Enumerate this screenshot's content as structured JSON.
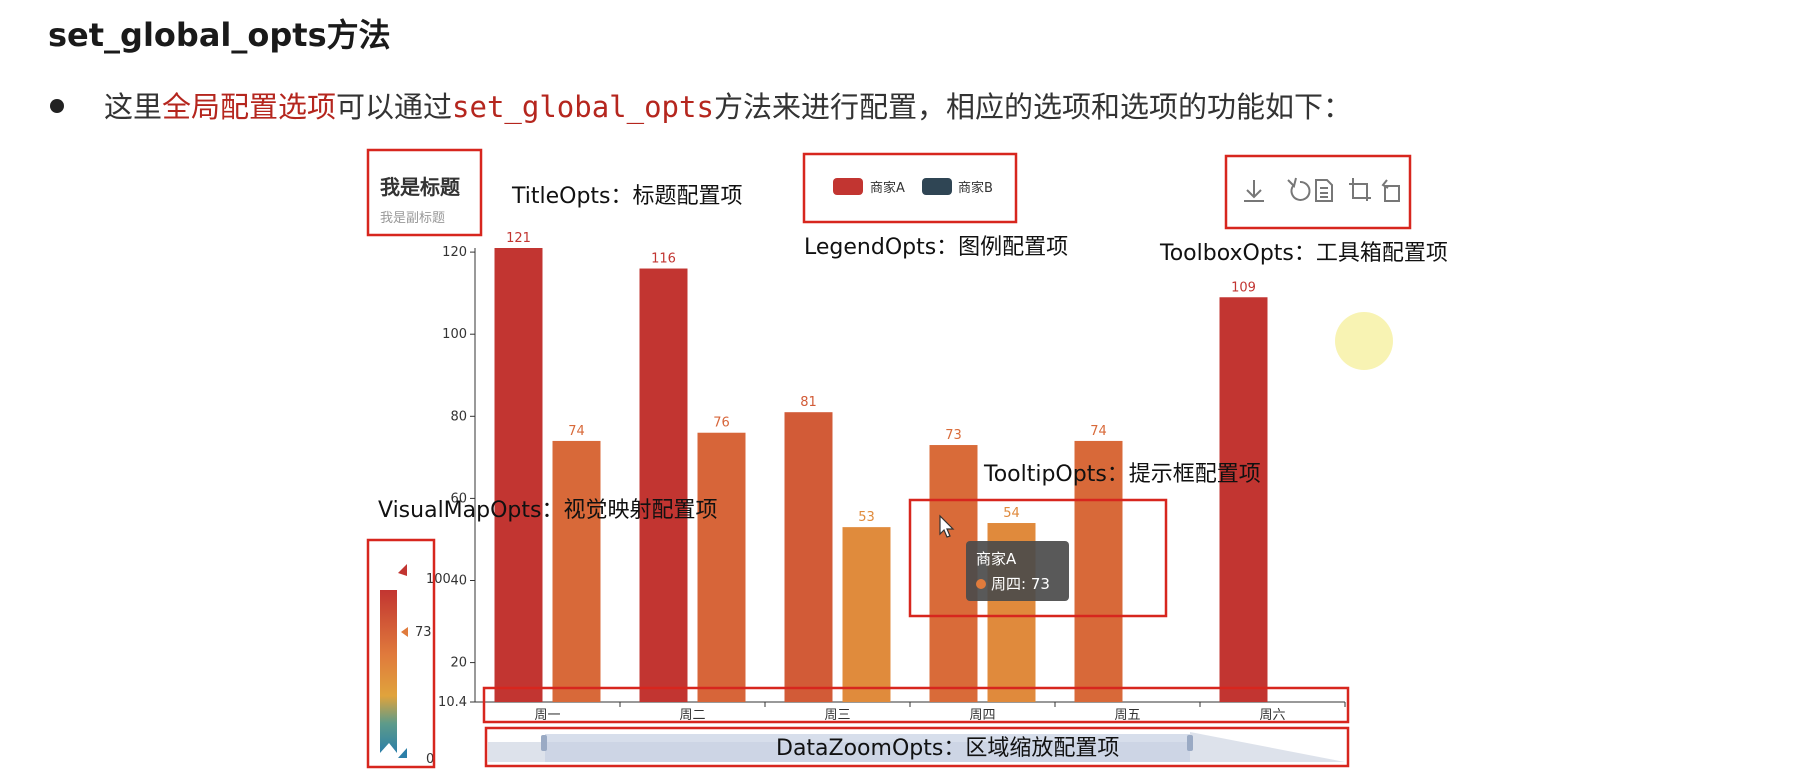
{
  "heading": "set_global_opts方法",
  "bullet": {
    "prefix": "这里",
    "highlight": "全局配置选项",
    "mid": "可以通过",
    "code": "set_global_opts",
    "suffix": "方法来进行配置，相应的选项和选项的功能如下："
  },
  "annotations": {
    "title_opts": "TitleOpts：标题配置项",
    "legend_opts": "LegendOpts：图例配置项",
    "toolbox_opts": "ToolboxOpts：工具箱配置项",
    "tooltip_opts": "TooltipOpts：提示框配置项",
    "visualmap_opts": "VisualMapOpts：视觉映射配置项",
    "datazoom_opts": "DataZoomOpts：区域缩放配置项"
  },
  "tooltip": {
    "series": "商家A",
    "line": "周四: 73",
    "dot_color": "#e07b3c"
  },
  "colors": {
    "box": "#d7261e",
    "legend_a": "#c23531",
    "legend_b": "#2f4554",
    "visual_high": "#c23531",
    "visual_mid": "#e0a33c",
    "visual_low": "#2c7fa8",
    "label_text": "#c0652e"
  },
  "chart_data": {
    "type": "bar",
    "title": "我是标题",
    "subtitle": "我是副标题",
    "categories": [
      "周一",
      "周二",
      "周三",
      "周四",
      "周五",
      "周六"
    ],
    "series": [
      {
        "name": "商家A",
        "values": [
          121,
          116,
          81,
          73,
          74,
          109
        ]
      },
      {
        "name": "商家B",
        "values": [
          74,
          76,
          53,
          54,
          null,
          null
        ]
      }
    ],
    "ylim": [
      10.4,
      121
    ],
    "yticks": [
      "10.4",
      "20",
      "40",
      "60",
      "80",
      "100",
      "120"
    ],
    "ytick_values": [
      10.4,
      20,
      40,
      60,
      80,
      100,
      120
    ],
    "visual_map": {
      "min": 0,
      "max": 100,
      "current": 73,
      "min_label": "0",
      "max_label": "100",
      "current_label": "73"
    },
    "legend_position": "top-center",
    "toolbox_icons": [
      "download-icon",
      "refresh-icon",
      "data-view-icon",
      "zoom-icon",
      "zoom-reset-icon"
    ],
    "grid": false
  }
}
